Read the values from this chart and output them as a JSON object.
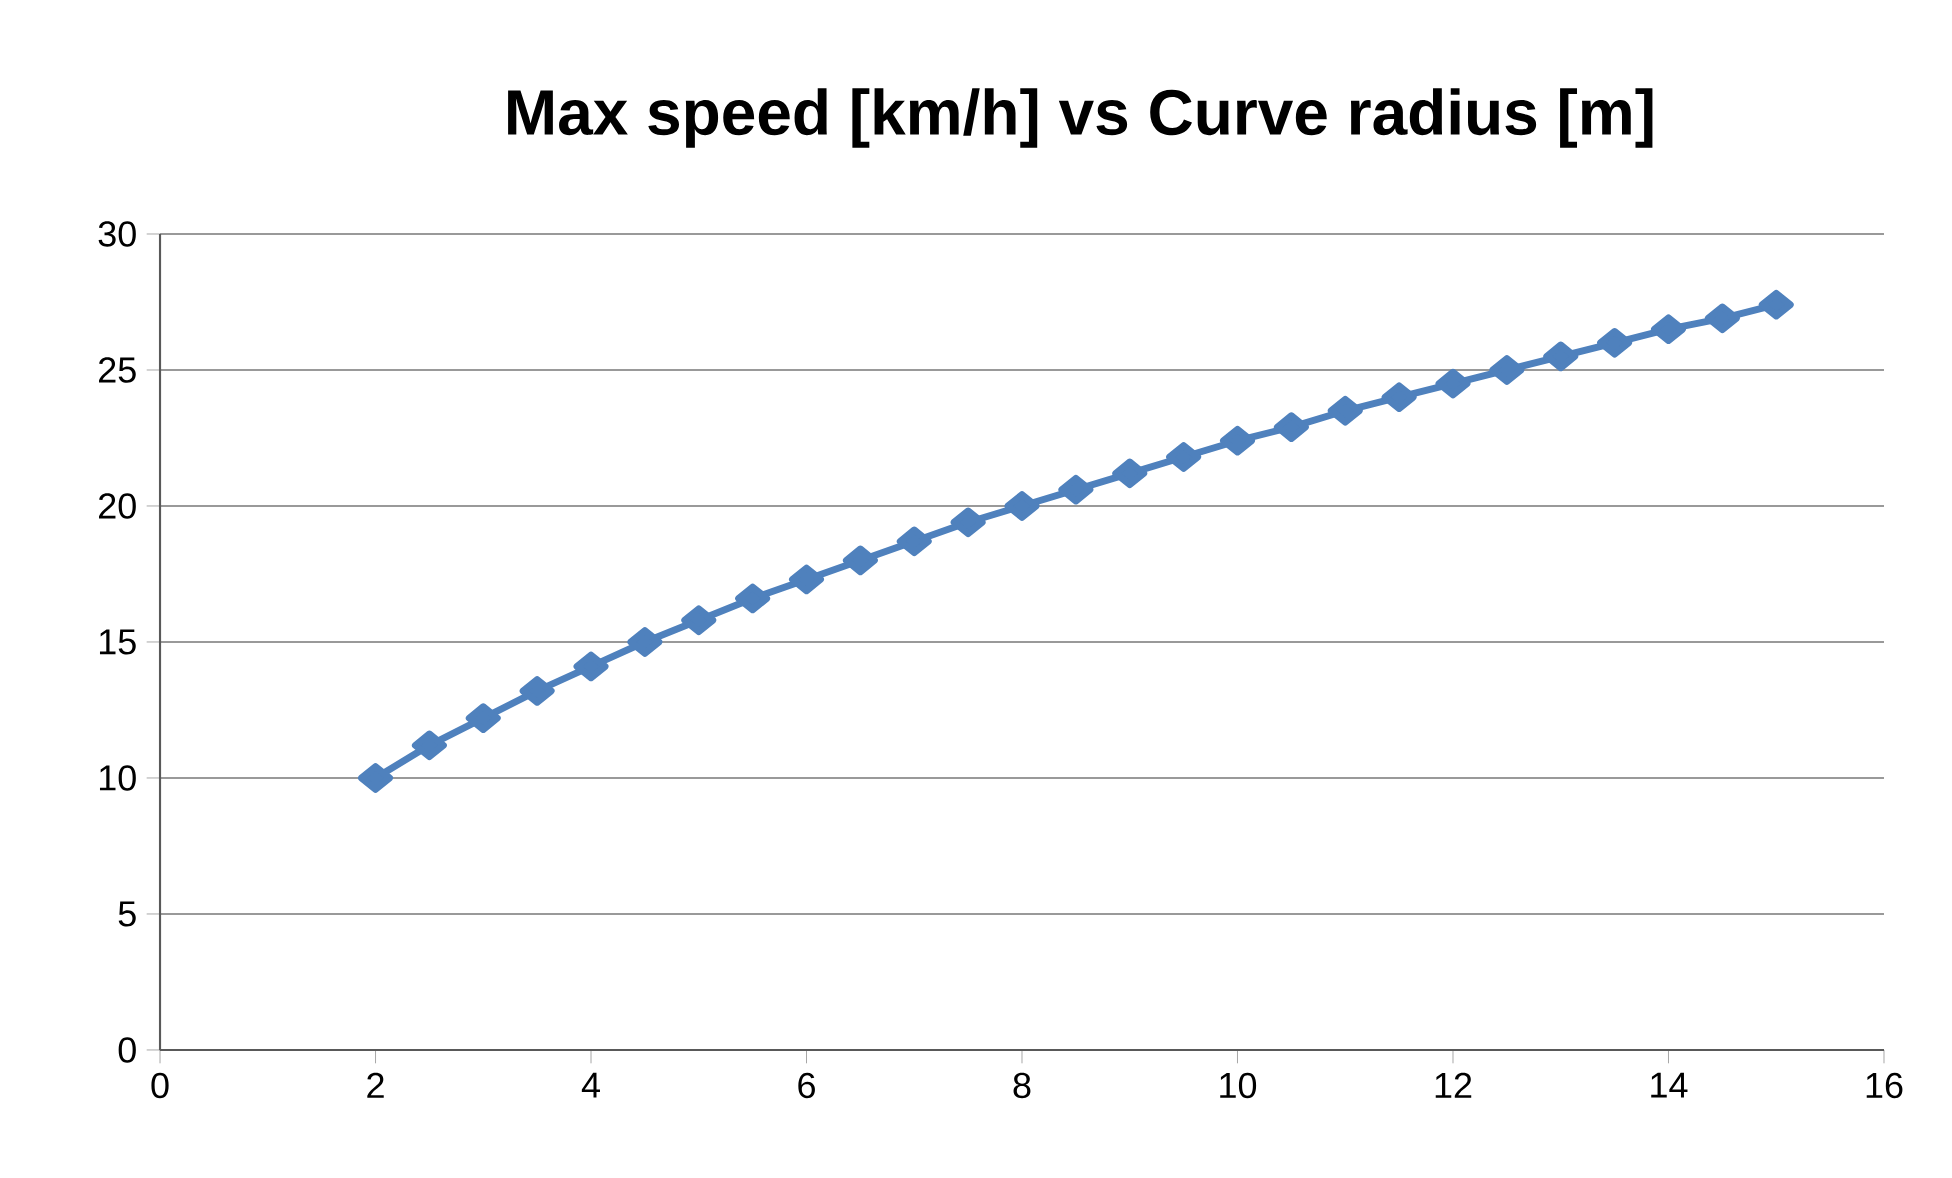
{
  "chart_data": {
    "type": "line",
    "title": "Max speed [km/h] vs Curve radius [m]",
    "x": [
      2,
      2.5,
      3,
      3.5,
      4,
      4.5,
      5,
      5.5,
      6,
      6.5,
      7,
      7.5,
      8,
      8.5,
      9,
      9.5,
      10,
      10.5,
      11,
      11.5,
      12,
      12.5,
      13,
      13.5,
      14,
      14.5,
      15
    ],
    "series": [
      {
        "color": "#4f81bd",
        "values": [
          10,
          11.2,
          12.2,
          13.2,
          14.1,
          15.0,
          15.8,
          16.6,
          17.3,
          18.0,
          18.7,
          19.4,
          20.0,
          20.6,
          21.2,
          21.8,
          22.4,
          22.9,
          23.5,
          24.0,
          24.5,
          25.0,
          25.5,
          26.0,
          26.5,
          26.9,
          27.4
        ]
      }
    ],
    "xlim": [
      0,
      16
    ],
    "xticks": [
      0,
      2,
      4,
      6,
      8,
      10,
      12,
      14,
      16
    ],
    "ylim": [
      0,
      30
    ],
    "yticks": [
      0,
      5,
      10,
      15,
      20,
      25,
      30
    ],
    "grid": "y",
    "marker": "diamond",
    "line_style": "solid"
  }
}
